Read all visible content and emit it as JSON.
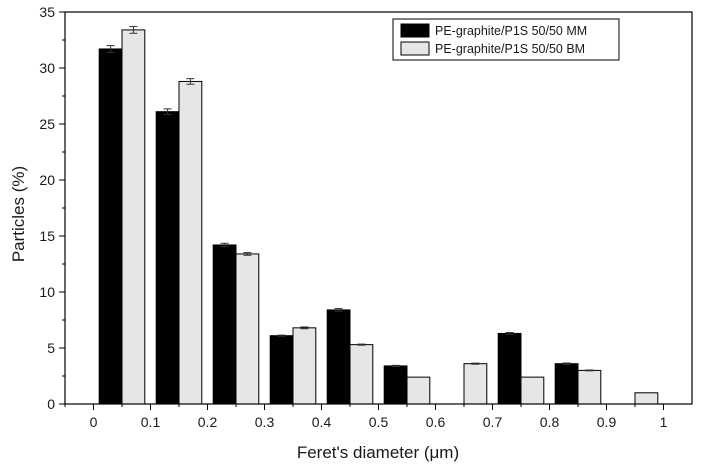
{
  "chart_data": {
    "type": "bar",
    "title": "",
    "xlabel": "Feret's diameter (μm)",
    "ylabel": "Particles (%)",
    "xlim": [
      -0.05,
      1.05
    ],
    "ylim": [
      0,
      35
    ],
    "x_ticks": [
      "0",
      "0.1",
      "0.2",
      "0.3",
      "0.4",
      "0.5",
      "0.6",
      "0.7",
      "0.8",
      "0.9",
      "1"
    ],
    "y_ticks": [
      "0",
      "5",
      "10",
      "15",
      "20",
      "25",
      "30",
      "35"
    ],
    "bin_centers": [
      0.05,
      0.15,
      0.25,
      0.35,
      0.45,
      0.55,
      0.65,
      0.75,
      0.85,
      0.95
    ],
    "series": [
      {
        "name": "PE-graphite/P1S 50/50 MM",
        "color": "#000000",
        "values": [
          31.7,
          26.1,
          14.2,
          6.1,
          8.4,
          3.4,
          0,
          6.3,
          3.6,
          0
        ],
        "errors": [
          0.3,
          0.25,
          0.15,
          0.05,
          0.12,
          0.05,
          0,
          0.08,
          0.06,
          0
        ]
      },
      {
        "name": "PE-graphite/P1S 50/50 BM",
        "color": "#e6e6e6",
        "values": [
          33.4,
          28.8,
          13.4,
          6.8,
          5.3,
          2.4,
          3.6,
          2.4,
          3.0,
          1.0
        ],
        "errors": [
          0.3,
          0.25,
          0.12,
          0.08,
          0.05,
          0,
          0.05,
          0,
          0.04,
          0
        ]
      }
    ],
    "legend_position": "top-right",
    "grid": false
  }
}
